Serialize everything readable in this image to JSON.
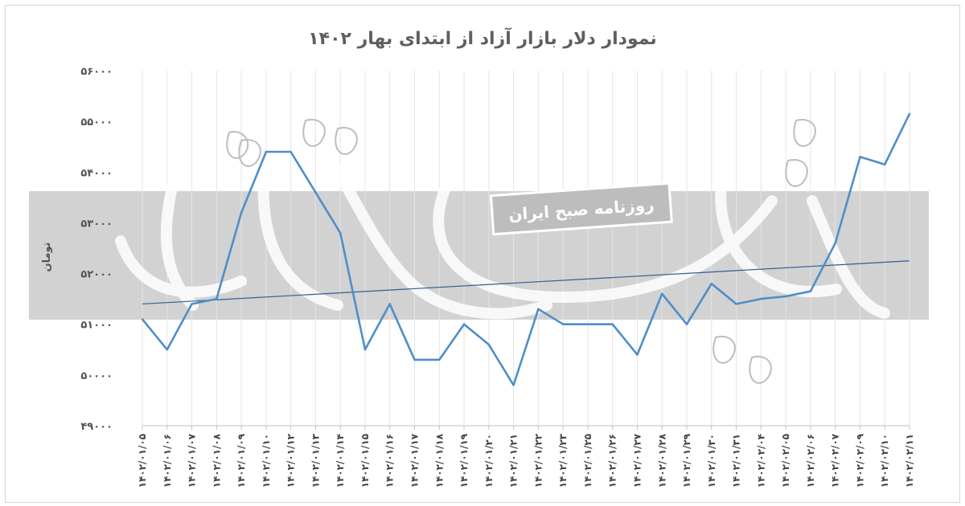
{
  "chart_data": {
    "type": "line",
    "title": "نمودار دلار بازار آزاد از ابتدای بهار ۱۴۰۲",
    "ylabel": "تومان",
    "xlabel": "",
    "ylim": [
      49000,
      56000
    ],
    "yticks": [
      "۴۹۰۰۰",
      "۵۰۰۰۰",
      "۵۱۰۰۰",
      "۵۲۰۰۰",
      "۵۳۰۰۰",
      "۵۴۰۰۰",
      "۵۵۰۰۰",
      "۵۶۰۰۰"
    ],
    "ytick_values": [
      49000,
      50000,
      51000,
      52000,
      53000,
      54000,
      55000,
      56000
    ],
    "grid": true,
    "categories": [
      "۱۴۰۲/۰۱/۰۵",
      "۱۴۰۲/۰۱/۰۶",
      "۱۴۰۲/۰۱/۰۷",
      "۱۴۰۲/۰۱/۰۸",
      "۱۴۰۲/۰۱/۰۹",
      "۱۴۰۲/۰۱/۱۰",
      "۱۴۰۲/۰۱/۱۲",
      "۱۴۰۲/۰۱/۱۳",
      "۱۴۰۲/۰۱/۱۴",
      "۱۴۰۲/۰۱/۱۵",
      "۱۴۰۲/۰۱/۱۶",
      "۱۴۰۲/۰۱/۱۷",
      "۱۴۰۲/۰۱/۱۸",
      "۱۴۰۲/۰۱/۱۹",
      "۱۴۰۲/۰۱/۲۰",
      "۱۴۰۲/۰۱/۲۱",
      "۱۴۰۲/۰۱/۲۲",
      "۱۴۰۲/۰۱/۲۳",
      "۱۴۰۲/۰۱/۲۵",
      "۱۴۰۲/۰۱/۲۶",
      "۱۴۰۲/۰۱/۲۷",
      "۱۴۰۲/۰۱/۲۸",
      "۱۴۰۲/۰۱/۲۹",
      "۱۴۰۲/۰۱/۳۰",
      "۱۴۰۲/۰۱/۳۱",
      "۱۴۰۲/۰۲/۰۴",
      "۱۴۰۲/۰۲/۰۵",
      "۱۴۰۲/۰۲/۰۶",
      "۱۴۰۲/۰۲/۰۷",
      "۱۴۰۲/۰۲/۰۹",
      "۱۴۰۲/۰۲/۱۰",
      "۱۴۰۲/۰۲/۱۱"
    ],
    "series": [
      {
        "color": "#4f8ec9",
        "values": [
          51100,
          50500,
          51400,
          51500,
          53200,
          54400,
          54400,
          53600,
          52800,
          50500,
          51400,
          50300,
          50300,
          51000,
          50600,
          49800,
          51300,
          51000,
          51000,
          51000,
          50400,
          51600,
          51000,
          51800,
          51400,
          51500,
          51550,
          51650,
          52600,
          54300,
          54150,
          55150
        ]
      }
    ],
    "trendline": {
      "color": "#2e5f93",
      "start": 51400,
      "end": 52250
    }
  },
  "watermark": {
    "label": "روزنامه صبح ایران"
  }
}
